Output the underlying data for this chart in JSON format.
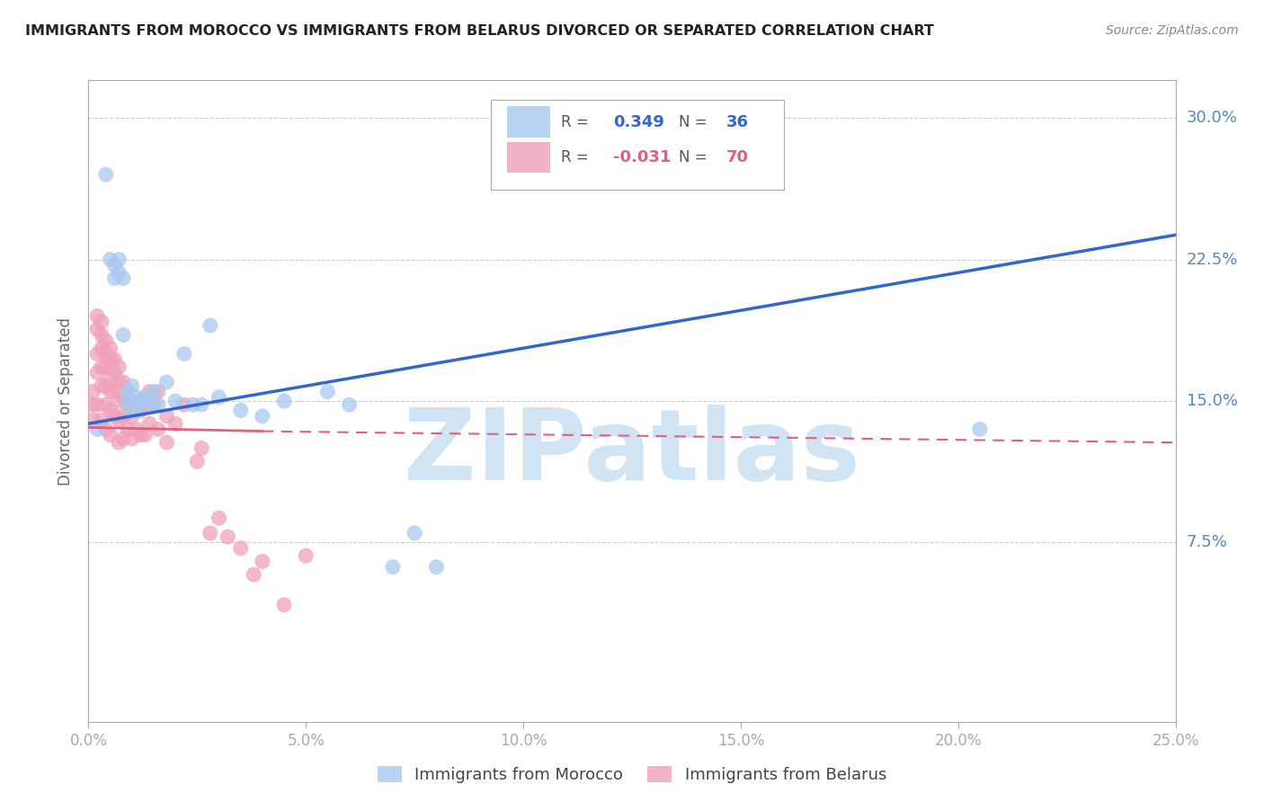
{
  "title": "IMMIGRANTS FROM MOROCCO VS IMMIGRANTS FROM BELARUS DIVORCED OR SEPARATED CORRELATION CHART",
  "source": "Source: ZipAtlas.com",
  "ylabel": "Divorced or Separated",
  "xlim": [
    0.0,
    0.25
  ],
  "ylim": [
    -0.02,
    0.32
  ],
  "ytick_vals": [
    0.075,
    0.15,
    0.225,
    0.3
  ],
  "ytick_labels": [
    "7.5%",
    "15.0%",
    "22.5%",
    "30.0%"
  ],
  "xtick_vals": [
    0.0,
    0.05,
    0.1,
    0.15,
    0.2,
    0.25
  ],
  "xtick_labels": [
    "0.0%",
    "5.0%",
    "10.0%",
    "15.0%",
    "20.0%",
    "25.0%"
  ],
  "morocco_color": "#A8C8F0",
  "belarus_color": "#F0A0B8",
  "morocco_line_color": "#3366CC",
  "belarus_line_color": "#E06080",
  "morocco_R": "0.349",
  "morocco_N": "36",
  "belarus_R": "-0.031",
  "belarus_N": "70",
  "watermark": "ZIPatlas",
  "watermark_color": "#D0E4F4",
  "legend_label_morocco": "Immigrants from Morocco",
  "legend_label_belarus": "Immigrants from Belarus",
  "morocco_scatter_x": [
    0.002,
    0.004,
    0.005,
    0.006,
    0.006,
    0.007,
    0.007,
    0.008,
    0.008,
    0.009,
    0.009,
    0.01,
    0.01,
    0.011,
    0.011,
    0.012,
    0.013,
    0.014,
    0.015,
    0.016,
    0.018,
    0.02,
    0.022,
    0.024,
    0.026,
    0.028,
    0.03,
    0.035,
    0.04,
    0.045,
    0.055,
    0.06,
    0.07,
    0.075,
    0.08,
    0.205
  ],
  "morocco_scatter_y": [
    0.135,
    0.27,
    0.225,
    0.222,
    0.215,
    0.225,
    0.218,
    0.215,
    0.185,
    0.155,
    0.15,
    0.158,
    0.145,
    0.152,
    0.145,
    0.15,
    0.152,
    0.148,
    0.155,
    0.148,
    0.16,
    0.15,
    0.175,
    0.148,
    0.148,
    0.19,
    0.152,
    0.145,
    0.142,
    0.15,
    0.155,
    0.148,
    0.062,
    0.08,
    0.062,
    0.135
  ],
  "belarus_scatter_x": [
    0.001,
    0.001,
    0.001,
    0.002,
    0.002,
    0.002,
    0.002,
    0.002,
    0.003,
    0.003,
    0.003,
    0.003,
    0.003,
    0.003,
    0.004,
    0.004,
    0.004,
    0.004,
    0.004,
    0.004,
    0.005,
    0.005,
    0.005,
    0.005,
    0.005,
    0.005,
    0.006,
    0.006,
    0.006,
    0.006,
    0.007,
    0.007,
    0.007,
    0.007,
    0.007,
    0.008,
    0.008,
    0.008,
    0.008,
    0.009,
    0.009,
    0.009,
    0.01,
    0.01,
    0.01,
    0.011,
    0.011,
    0.012,
    0.012,
    0.013,
    0.013,
    0.014,
    0.014,
    0.015,
    0.016,
    0.016,
    0.018,
    0.018,
    0.02,
    0.022,
    0.025,
    0.026,
    0.028,
    0.03,
    0.032,
    0.035,
    0.038,
    0.04,
    0.045,
    0.05
  ],
  "belarus_scatter_y": [
    0.155,
    0.148,
    0.14,
    0.195,
    0.188,
    0.175,
    0.165,
    0.148,
    0.192,
    0.185,
    0.178,
    0.168,
    0.158,
    0.14,
    0.182,
    0.175,
    0.168,
    0.158,
    0.148,
    0.135,
    0.178,
    0.172,
    0.162,
    0.155,
    0.145,
    0.132,
    0.172,
    0.165,
    0.155,
    0.142,
    0.168,
    0.16,
    0.15,
    0.14,
    0.128,
    0.16,
    0.152,
    0.142,
    0.13,
    0.155,
    0.148,
    0.135,
    0.15,
    0.142,
    0.13,
    0.148,
    0.135,
    0.145,
    0.132,
    0.148,
    0.132,
    0.155,
    0.138,
    0.148,
    0.155,
    0.135,
    0.142,
    0.128,
    0.138,
    0.148,
    0.118,
    0.125,
    0.08,
    0.088,
    0.078,
    0.072,
    0.058,
    0.065,
    0.042,
    0.068
  ],
  "grid_color": "#CCCCCC",
  "axis_color": "#AAAAAA",
  "tick_color": "#5588BB",
  "background_color": "#FFFFFF",
  "morocco_trend_start_y": 0.138,
  "morocco_trend_end_y": 0.238,
  "belarus_trend_start_y": 0.136,
  "belarus_trend_end_y": 0.128
}
